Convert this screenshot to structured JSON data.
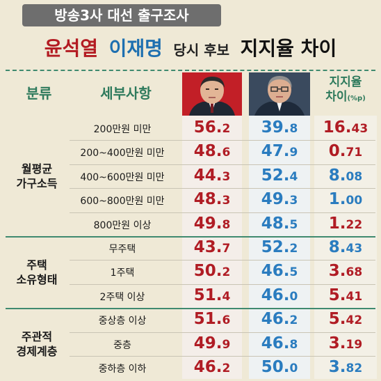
{
  "banner": "방송3사 대선 출구조사",
  "headline": {
    "yoon": "윤석열",
    "lee": "이재명",
    "middle": "당시 후보",
    "tail": "지지율 차이"
  },
  "header": {
    "category": "분류",
    "detail": "세부사항",
    "gap_line1": "지지율",
    "gap_line2": "차이",
    "gap_unit": "(%p)"
  },
  "colors": {
    "yoon": "#b01c24",
    "lee": "#2a7cbf",
    "accent": "#2e7a5c",
    "background": "#efe9d6"
  },
  "chart_data": {
    "type": "table",
    "columns": [
      "분류",
      "세부사항",
      "윤석열",
      "이재명",
      "지지율 차이(%p)"
    ],
    "groups": [
      {
        "label_line1": "월평균",
        "label_line2": "가구소득",
        "rows": [
          {
            "detail": "200만원 미만",
            "yoon": "56.2",
            "lee": "39.8",
            "gap": "16.43",
            "leader": "yoon"
          },
          {
            "detail": "200~400만원 미만",
            "yoon": "48.6",
            "lee": "47.9",
            "gap": "0.71",
            "leader": "yoon"
          },
          {
            "detail": "400~600만원 미만",
            "yoon": "44.3",
            "lee": "52.4",
            "gap": "8.08",
            "leader": "lee"
          },
          {
            "detail": "600~800만원 미만",
            "yoon": "48.3",
            "lee": "49.3",
            "gap": "1.00",
            "leader": "lee"
          },
          {
            "detail": "800만원 이상",
            "yoon": "49.8",
            "lee": "48.5",
            "gap": "1.22",
            "leader": "yoon"
          }
        ]
      },
      {
        "label_line1": "주택",
        "label_line2": "소유형태",
        "rows": [
          {
            "detail": "무주택",
            "yoon": "43.7",
            "lee": "52.2",
            "gap": "8.43",
            "leader": "lee"
          },
          {
            "detail": "1주택",
            "yoon": "50.2",
            "lee": "46.5",
            "gap": "3.68",
            "leader": "yoon"
          },
          {
            "detail": "2주택 이상",
            "yoon": "51.4",
            "lee": "46.0",
            "gap": "5.41",
            "leader": "yoon"
          }
        ]
      },
      {
        "label_line1": "주관적",
        "label_line2": "경제계층",
        "rows": [
          {
            "detail": "중상층 이상",
            "yoon": "51.6",
            "lee": "46.2",
            "gap": "5.42",
            "leader": "yoon"
          },
          {
            "detail": "중층",
            "yoon": "49.9",
            "lee": "46.8",
            "gap": "3.19",
            "leader": "yoon"
          },
          {
            "detail": "중하층 이하",
            "yoon": "46.2",
            "lee": "50.0",
            "gap": "3.82",
            "leader": "lee"
          }
        ]
      }
    ]
  }
}
